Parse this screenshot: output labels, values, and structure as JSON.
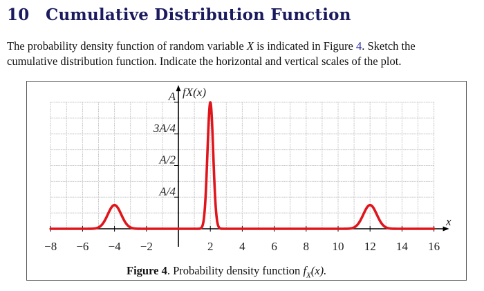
{
  "section": {
    "number": "10",
    "title": "Cumulative Distribution Function"
  },
  "paragraph": {
    "line1_pre": "The probability density function of random variable ",
    "line1_var": "X",
    "line1_mid": " is indicated in Figure ",
    "line1_ref": "4",
    "line1_post": ". Sketch the",
    "line2": "cumulative distribution function. Indicate the horizontal and vertical scales of the plot."
  },
  "figure": {
    "caption_label": "Figure 4",
    "caption_text": ". Probability density function ",
    "caption_fn": "f",
    "caption_sub": "X",
    "caption_arg": "(x)."
  },
  "chart_data": {
    "type": "line",
    "title": "Probability density function f_X(x)",
    "xlabel": "x",
    "ylabel": "f_X(x)",
    "xlim": [
      -8,
      16
    ],
    "ylim": [
      0,
      "A"
    ],
    "grid": true,
    "x_ticks": [
      -8,
      -6,
      -4,
      -2,
      2,
      4,
      6,
      8,
      10,
      12,
      14,
      16
    ],
    "x_tick_labels": [
      "−8",
      "−6",
      "−4",
      "−2",
      "2",
      "4",
      "6",
      "8",
      "10",
      "12",
      "14",
      "16"
    ],
    "y_ticks": [
      "A/4",
      "A/2",
      "3A/4",
      "A"
    ],
    "y_tick_values": [
      0.25,
      0.5,
      0.75,
      1.0
    ],
    "series": [
      {
        "name": "f_X(x)",
        "color": "#e0141b",
        "peaks": [
          {
            "center": -4,
            "height_fraction_of_A": 0.1875,
            "shape": "gaussian",
            "approx_support": [
              -5.3,
              -2.7
            ]
          },
          {
            "center": 2,
            "height_fraction_of_A": 1.0,
            "shape": "narrow spike",
            "approx_support": [
              1.4,
              2.6
            ]
          },
          {
            "center": 12,
            "height_fraction_of_A": 0.1875,
            "shape": "gaussian",
            "approx_support": [
              10.7,
              13.3
            ]
          }
        ]
      }
    ],
    "annotations": []
  }
}
